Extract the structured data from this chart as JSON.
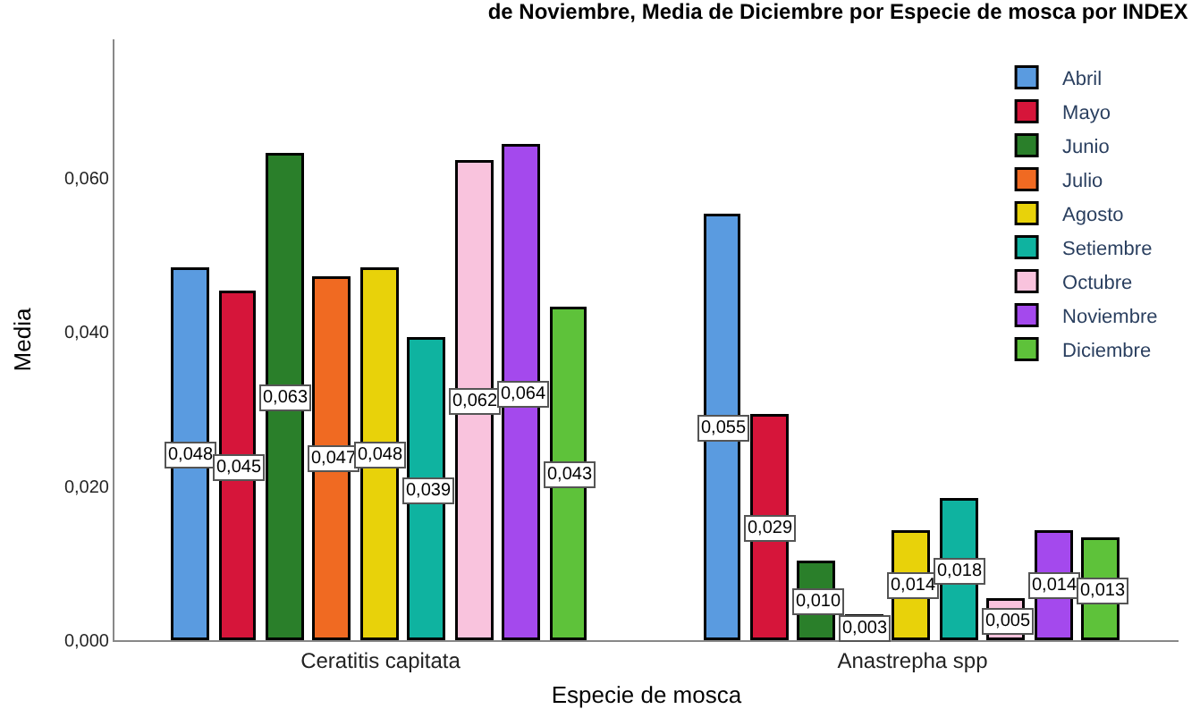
{
  "chart_data": {
    "type": "bar",
    "title": "de Noviembre, Media de Diciembre por Especie de mosca por INDEX",
    "xlabel": "Especie de mosca",
    "ylabel": "Media",
    "categories": [
      "Ceratitis capitata",
      "Anastrepha spp"
    ],
    "series": [
      {
        "name": "Abril",
        "color": "#5a9be0",
        "values": [
          0.048,
          0.055
        ],
        "value_labels": [
          "0,048",
          "0,055"
        ]
      },
      {
        "name": "Mayo",
        "color": "#d6153a",
        "values": [
          0.045,
          0.029
        ],
        "value_labels": [
          "0,045",
          "0,029"
        ]
      },
      {
        "name": "Junio",
        "color": "#2a7f2a",
        "values": [
          0.063,
          0.01
        ],
        "value_labels": [
          "0,063",
          "0,010"
        ]
      },
      {
        "name": "Julio",
        "color": "#f06a22",
        "values": [
          0.047,
          0.003
        ],
        "value_labels": [
          "0,047",
          "0,003"
        ]
      },
      {
        "name": "Agosto",
        "color": "#e8d20a",
        "values": [
          0.048,
          0.014
        ],
        "value_labels": [
          "0,048",
          "0,014"
        ]
      },
      {
        "name": "Setiembre",
        "color": "#0fb3a0",
        "values": [
          0.039,
          0.018
        ],
        "value_labels": [
          "0,039",
          "0,018"
        ]
      },
      {
        "name": "Octubre",
        "color": "#f9c3dd",
        "values": [
          0.062,
          0.005
        ],
        "value_labels": [
          "0,062",
          "0,005"
        ]
      },
      {
        "name": "Noviembre",
        "color": "#a449ed",
        "values": [
          0.064,
          0.014
        ],
        "value_labels": [
          "0,064",
          "0,014"
        ]
      },
      {
        "name": "Diciembre",
        "color": "#5ec23a",
        "values": [
          0.043,
          0.013
        ],
        "value_labels": [
          "0,043",
          "0,013"
        ]
      }
    ],
    "ylim": [
      0,
      0.078
    ],
    "yticks": [
      {
        "value": 0,
        "label": "0,000"
      },
      {
        "value": 0.02,
        "label": "0,020"
      },
      {
        "value": 0.04,
        "label": "0,040"
      },
      {
        "value": 0.06,
        "label": "0,060"
      }
    ],
    "legend": "top right"
  }
}
